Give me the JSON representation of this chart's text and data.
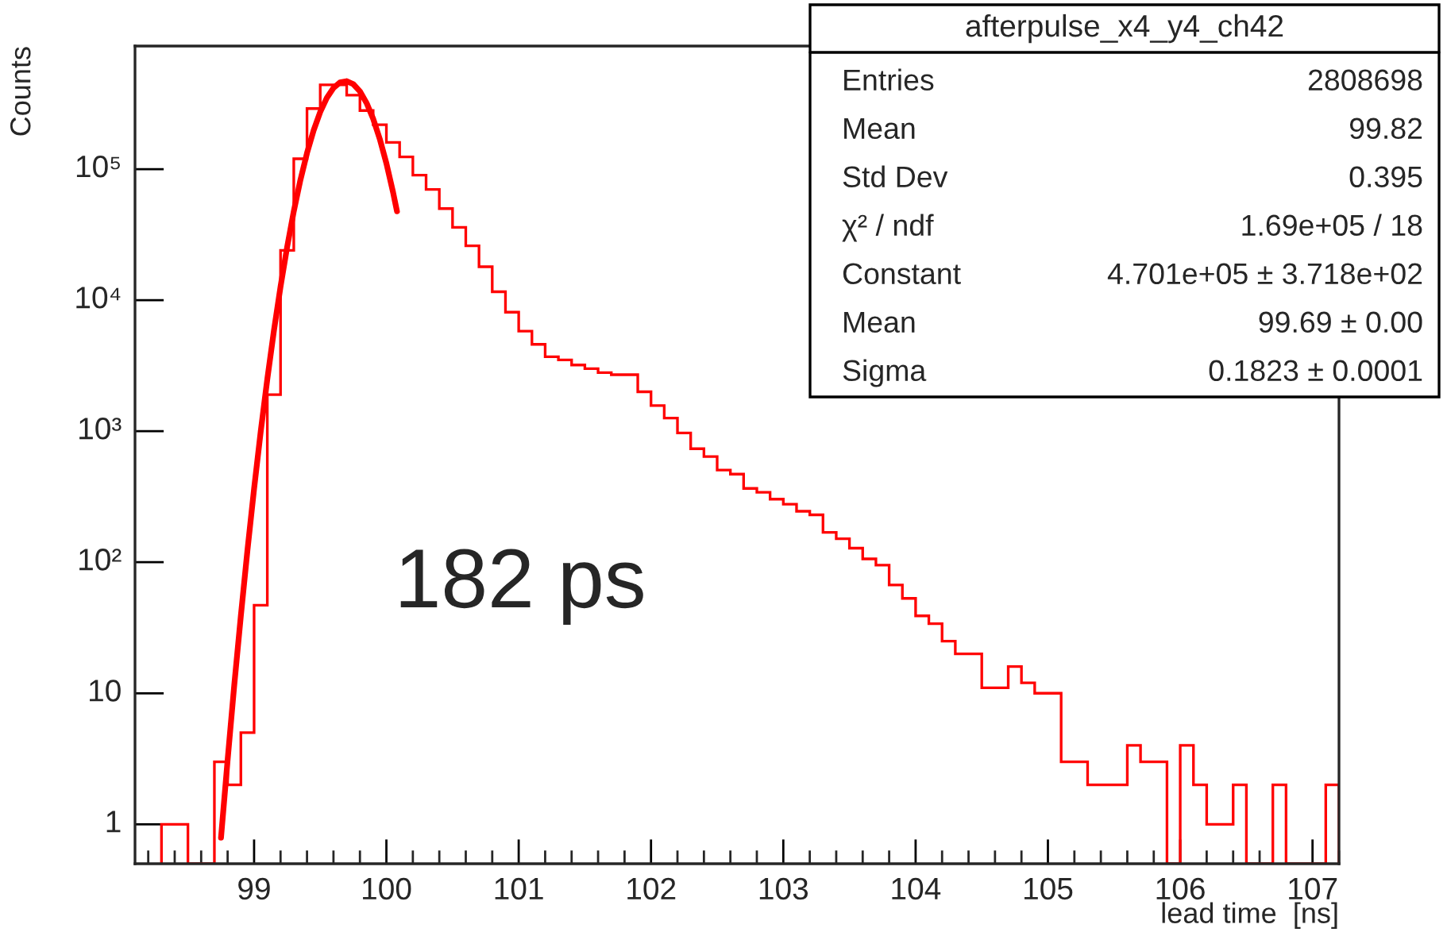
{
  "chart_data": {
    "type": "histogram",
    "xlabel": "lead time  [ns]",
    "ylabel": "Counts",
    "series": [
      {
        "color": "#ff0000",
        "bins": [
          98.3,
          98.4,
          98.5,
          98.6,
          98.7,
          98.8,
          98.9,
          99.0,
          99.1,
          99.2,
          99.3,
          99.4,
          99.5,
          99.6,
          99.7,
          99.8,
          99.9,
          100.0,
          100.1,
          100.2,
          100.3,
          100.4,
          100.5,
          100.6,
          100.7,
          100.8,
          100.9,
          101.0,
          101.1,
          101.2,
          101.3,
          101.4,
          101.5,
          101.6,
          101.7,
          101.8,
          101.9,
          102.0,
          102.1,
          102.2,
          102.3,
          102.4,
          102.5,
          102.6,
          102.7,
          102.8,
          102.9,
          103.0,
          103.1,
          103.2,
          103.3,
          103.4,
          103.5,
          103.6,
          103.7,
          103.8,
          103.9,
          104.0,
          104.1,
          104.2,
          104.3,
          104.4,
          104.5,
          104.6,
          104.7,
          104.8,
          104.9,
          105.0,
          105.1,
          105.2,
          105.3,
          105.4,
          105.5,
          105.6,
          105.7,
          105.8,
          105.9,
          106.0,
          106.1,
          106.2,
          106.3,
          106.4,
          106.5,
          106.6,
          106.7,
          106.8,
          106.9,
          107.0,
          107.1,
          107.2
        ],
        "values": [
          1,
          1,
          null,
          null,
          3,
          2,
          5,
          47,
          1900,
          24000,
          120000,
          290000,
          440000,
          440000,
          367000,
          280000,
          218000,
          160000,
          124000,
          90000,
          70000,
          50000,
          36000,
          26000,
          18000,
          11600,
          8100,
          5800,
          4600,
          3700,
          3500,
          3200,
          3000,
          2800,
          2700,
          2700,
          2000,
          1570,
          1260,
          970,
          735,
          640,
          505,
          470,
          366,
          342,
          303,
          277,
          245,
          230,
          169,
          151,
          128,
          106,
          95,
          67,
          53,
          39,
          34,
          25,
          20,
          20,
          11,
          11,
          16,
          12,
          10,
          10,
          3,
          3,
          2,
          2,
          2,
          4,
          3,
          3,
          null,
          4,
          2,
          1,
          1,
          2,
          null,
          null,
          2,
          null,
          null,
          null,
          2
        ]
      },
      {
        "type": "line",
        "color": "#ff0000",
        "x": [
          98.75,
          98.8,
          98.85,
          98.9,
          98.95,
          99.0,
          99.05,
          99.1,
          99.15,
          99.2,
          99.25,
          99.3,
          99.35,
          99.4,
          99.45,
          99.5,
          99.55,
          99.6,
          99.65,
          99.7,
          99.75,
          99.8,
          99.85,
          99.9,
          99.95,
          100.0,
          100.05,
          100.08
        ],
        "values": [
          0.79,
          3.1,
          11.5,
          39,
          124,
          364,
          992,
          2500,
          5850,
          12700,
          25500,
          47700,
          82600,
          132700,
          197600,
          273100,
          350000,
          416200,
          458900,
          469400,
          445300,
          391900,
          319900,
          242100,
          170000,
          110700,
          66900,
          47700
        ]
      }
    ],
    "log": "y",
    "xlim": [
      98.1,
      107.2
    ],
    "xticks": [
      99,
      100,
      101,
      102,
      103,
      104,
      105,
      106,
      107
    ],
    "ylim": [
      0.5,
      870000
    ],
    "yticks": [
      {
        "value": 1,
        "label": "1"
      },
      {
        "value": 10,
        "label": "10"
      },
      {
        "value": 100,
        "label": "10²"
      },
      {
        "value": 1000,
        "label": "10³"
      },
      {
        "value": 10000,
        "label": "10⁴"
      },
      {
        "value": 100000,
        "label": "10⁵"
      }
    ],
    "grid": false,
    "legend": false,
    "annotations": [
      "182 ps",
      "afterpulse_x4_y4_ch42",
      "Entries",
      "2808698",
      "Mean",
      "99.82",
      "Std Dev",
      "0.395",
      "χ² / ndf",
      "1.69e+05 / 18",
      "Constant",
      "4.701e+05 ± 3.718e+02",
      "Mean",
      "99.69 ± 0.00",
      "Sigma",
      "0.1823 ± 0.0001"
    ]
  }
}
